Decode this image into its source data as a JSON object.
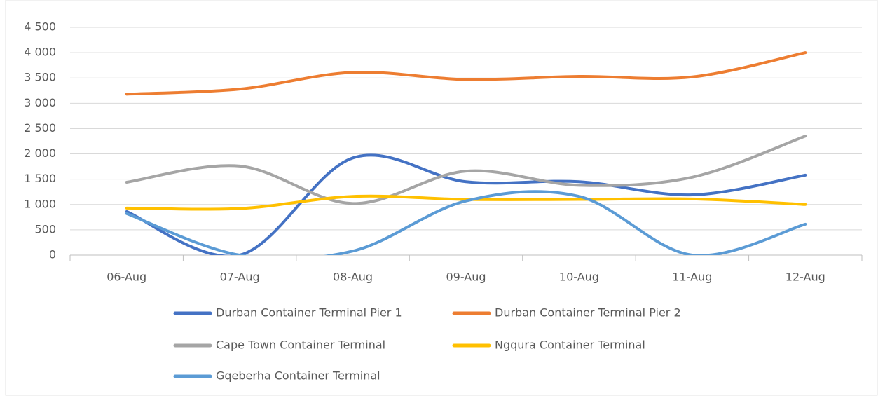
{
  "chart_data": {
    "type": "line",
    "smooth": true,
    "categories": [
      "06-Aug",
      "07-Aug",
      "08-Aug",
      "09-Aug",
      "10-Aug",
      "11-Aug",
      "12-Aug"
    ],
    "series": [
      {
        "name": "Durban Container Terminal Pier 1",
        "color": "#4472c4",
        "values": [
          860,
          0,
          1920,
          1450,
          1450,
          1190,
          1580
        ]
      },
      {
        "name": "Durban Container Terminal Pier 2",
        "color": "#ed7d31",
        "values": [
          3180,
          3280,
          3610,
          3470,
          3530,
          3520,
          4000
        ]
      },
      {
        "name": "Cape Town Container Terminal",
        "color": "#a5a5a5",
        "values": [
          1440,
          1760,
          1020,
          1660,
          1380,
          1540,
          2350
        ]
      },
      {
        "name": "Ngqura Container Terminal",
        "color": "#ffc000",
        "values": [
          930,
          920,
          1160,
          1100,
          1100,
          1110,
          1000
        ]
      },
      {
        "name": "Gqeberha Container Terminal",
        "color": "#5b9bd5",
        "values": [
          820,
          0,
          80,
          1070,
          1160,
          0,
          610
        ]
      }
    ],
    "ylim": [
      0,
      4500
    ],
    "yticks": [
      0,
      500,
      {
        "value": 1000,
        "label": "1 000"
      },
      {
        "value": 1500,
        "label": "1 500"
      },
      {
        "value": 2000,
        "label": "2 000"
      },
      {
        "value": 2500,
        "label": "2 500"
      },
      {
        "value": 3000,
        "label": "3 000"
      },
      {
        "value": 3500,
        "label": "3 500"
      },
      {
        "value": 4000,
        "label": "4 000"
      },
      {
        "value": 4500,
        "label": "4 500"
      }
    ],
    "grid": true,
    "legend": "bottom"
  }
}
